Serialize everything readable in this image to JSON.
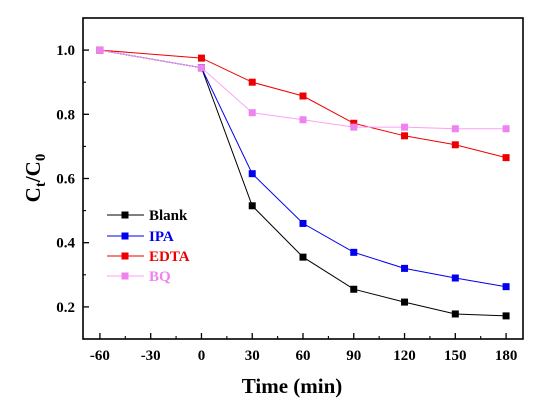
{
  "chart_data": {
    "type": "line",
    "xlabel": "Time (min)",
    "ylabel_main": "C",
    "ylabel_sub1": "t",
    "ylabel_sep": "/C",
    "ylabel_sub2": "0",
    "x": [
      -60,
      0,
      30,
      60,
      90,
      120,
      150,
      180
    ],
    "xlim": [
      -70,
      190
    ],
    "ylim": [
      0.1,
      1.1
    ],
    "xticks": [
      -60,
      -30,
      0,
      30,
      60,
      90,
      120,
      150,
      180
    ],
    "yticks": [
      0.2,
      0.4,
      0.6,
      0.8,
      1.0
    ],
    "xtick_labels": [
      "-60",
      "-30",
      "0",
      "30",
      "60",
      "90",
      "120",
      "150",
      "180"
    ],
    "ytick_labels": [
      "0.2",
      "0.4",
      "0.6",
      "0.8",
      "1.0"
    ],
    "grid": false,
    "legend_position": "lower-left",
    "series": [
      {
        "name": "Blank",
        "color": "#000000",
        "marker_color": "#000000",
        "values": [
          1.0,
          0.945,
          0.515,
          0.355,
          0.255,
          0.215,
          0.178,
          0.172
        ]
      },
      {
        "name": "IPA",
        "color": "#0000ee",
        "marker_color": "#0000ee",
        "values": [
          1.0,
          0.945,
          0.615,
          0.46,
          0.37,
          0.32,
          0.29,
          0.263
        ]
      },
      {
        "name": "EDTA",
        "color": "#ee0000",
        "marker_color": "#ee0000",
        "values": [
          1.0,
          0.975,
          0.9,
          0.857,
          0.772,
          0.733,
          0.705,
          0.665
        ]
      },
      {
        "name": "BQ",
        "color": "#ff9ff3",
        "marker_color": "#ee82ee",
        "values": [
          1.0,
          0.945,
          0.805,
          0.783,
          0.76,
          0.76,
          0.755,
          0.755
        ]
      }
    ]
  }
}
